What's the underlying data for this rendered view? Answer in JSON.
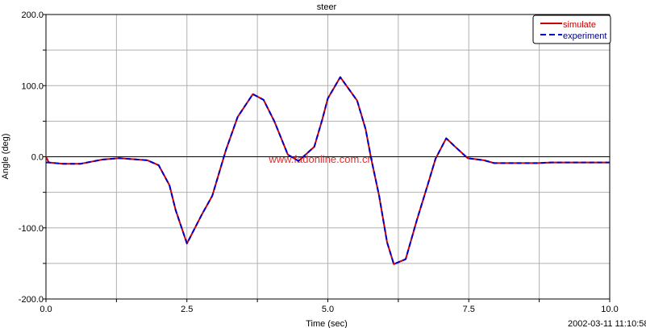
{
  "chart_data": {
    "type": "line",
    "title": "steer",
    "xlabel": "Time (sec)",
    "ylabel": "Angle (deg)",
    "xlim": [
      0,
      10
    ],
    "ylim": [
      -200,
      200
    ],
    "xticks": [
      0,
      2.5,
      5,
      7.5,
      10
    ],
    "xtick_labels": [
      "0.0",
      "2.5",
      "5.0",
      "7.5",
      "10.0"
    ],
    "yticks": [
      -200,
      -100,
      0,
      100,
      200
    ],
    "ytick_labels": [
      "-200.0",
      "-100.0",
      "0.0",
      "100.0",
      "200.0"
    ],
    "grid": true,
    "x_grid_step": 1.25,
    "y_grid_step": 50,
    "legend_position": "top-right",
    "watermark": "www.fadonline.com.cn",
    "timestamp": "2002-03-11 11:10:58",
    "colors": {
      "simulate": "#cc0000",
      "experiment": "#0000cc",
      "grid": "#b0b0b0",
      "watermark": "#e03030"
    },
    "x": [
      0,
      0.05,
      0.3,
      0.61,
      0.8,
      1.0,
      1.3,
      1.8,
      2.0,
      2.19,
      2.3,
      2.5,
      2.76,
      2.95,
      3.19,
      3.4,
      3.67,
      3.86,
      4.05,
      4.29,
      4.48,
      4.76,
      4.9,
      5.0,
      5.22,
      5.52,
      5.67,
      5.77,
      5.91,
      6.05,
      6.17,
      6.38,
      6.58,
      6.77,
      6.91,
      7.1,
      7.3,
      7.48,
      7.77,
      7.95,
      8.72,
      8.96,
      10.0
    ],
    "series": [
      {
        "name": "simulate",
        "style": "solid",
        "values": [
          0,
          -8,
          -10,
          -10,
          -7,
          -4,
          -2,
          -5,
          -12,
          -40,
          -75,
          -122,
          -82,
          -55,
          9,
          56,
          88,
          80,
          50,
          3,
          -6,
          14,
          52,
          82,
          112,
          79,
          39,
          -3,
          -55,
          -120,
          -151,
          -144,
          -89,
          -40,
          -3,
          26,
          11,
          -2,
          -5,
          -9,
          -9,
          -8,
          -8
        ]
      },
      {
        "name": "experiment",
        "style": "dashed",
        "values": [
          -8,
          -8,
          -10,
          -10,
          -7,
          -4,
          -2,
          -5,
          -12,
          -40,
          -75,
          -122,
          -82,
          -55,
          9,
          56,
          88,
          80,
          50,
          3,
          -6,
          14,
          52,
          82,
          112,
          79,
          39,
          -3,
          -55,
          -120,
          -151,
          -144,
          -89,
          -40,
          -3,
          26,
          11,
          -2,
          -5,
          -9,
          -9,
          -8,
          -8
        ]
      }
    ]
  }
}
